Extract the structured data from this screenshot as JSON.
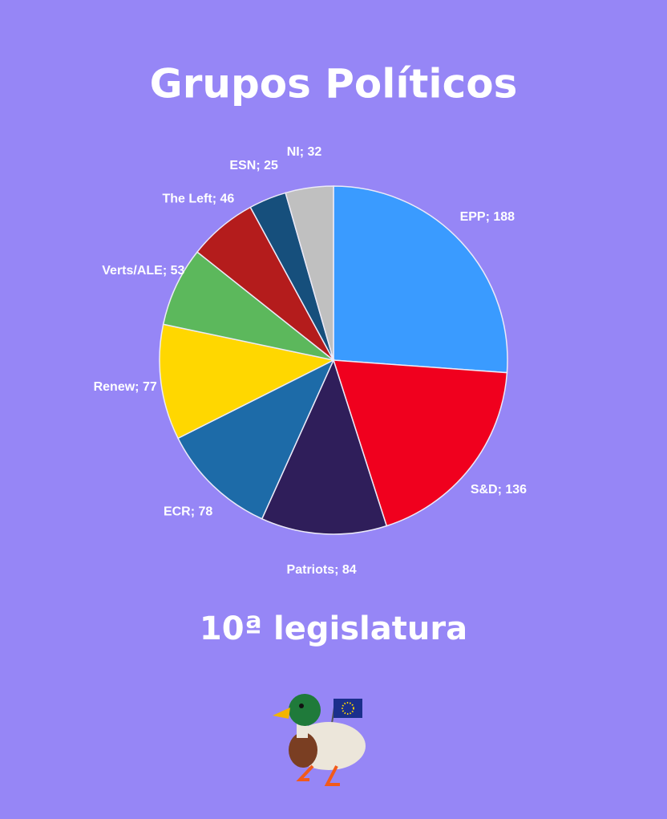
{
  "chart_data": {
    "type": "pie",
    "title": "Grupos Políticos",
    "subtitle": "10ª legislatura",
    "values": [
      188,
      136,
      84,
      78,
      77,
      53,
      46,
      25,
      32
    ],
    "value_labels": [
      "EPP; 188",
      "S&D; 136",
      "Patriots; 84",
      "ECR; 78",
      "Renew; 77",
      "Verts/ALE; 53",
      "The Left; 46",
      "ESN; 25",
      "NI; 32"
    ],
    "colors": [
      "#3a9bff",
      "#f0001e",
      "#2f1e5a",
      "#1d6ba8",
      "#ffd700",
      "#5cb85c",
      "#b41c1c",
      "#164f7c",
      "#c0c0c0"
    ]
  }
}
